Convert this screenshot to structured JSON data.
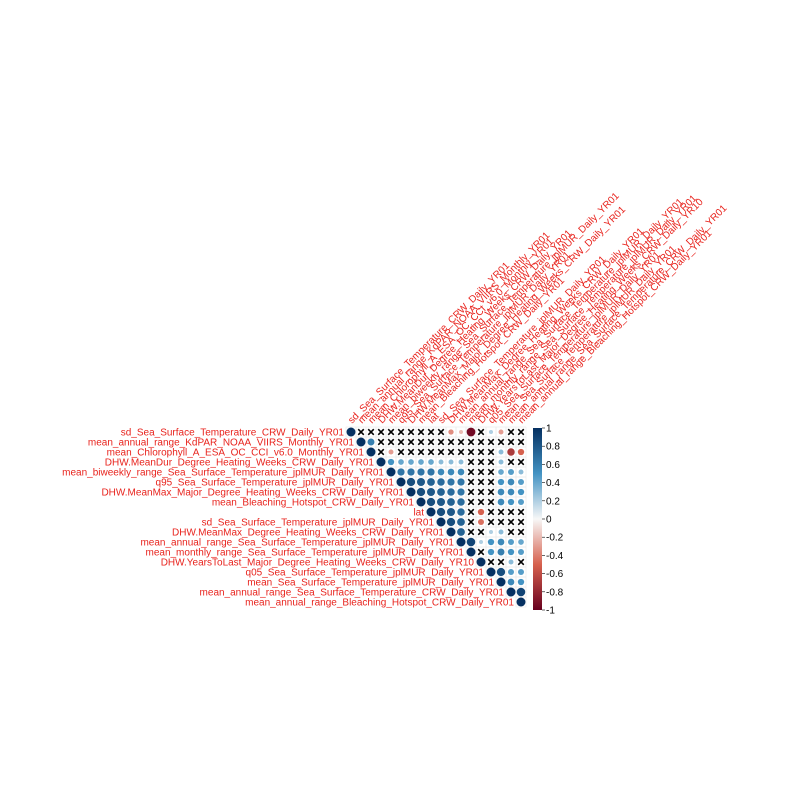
{
  "chart_data": {
    "type": "heatmap",
    "subtype": "correlation-matrix-upper-triangle",
    "variables": [
      "sd_Sea_Surface_Temperature_CRW_Daily_YR01",
      "mean_annual_range_KdPAR_NOAA_VIIRS_Monthly_YR01",
      "mean_Chlorophyll_A_ESA_OC_CCI_v6.0_Monthly_YR01",
      "DHW.MeanDur_Degree_Heating_Weeks_CRW_Daily_YR01",
      "mean_biweekly_range_Sea_Surface_Temperature_jplMUR_Daily_YR01",
      "q95_Sea_Surface_Temperature_jplMUR_Daily_YR01",
      "DHW.MeanMax_Major_Degree_Heating_Weeks_CRW_Daily_YR01",
      "mean_Bleaching_Hotspot_CRW_Daily_YR01",
      "lat",
      "sd_Sea_Surface_Temperature_jplMUR_Daily_YR01",
      "DHW.MeanMax_Degree_Heating_Weeks_CRW_Daily_YR01",
      "mean_annual_range_Sea_Surface_Temperature_jplMUR_Daily_YR01",
      "mean_monthly_range_Sea_Surface_Temperature_jplMUR_Daily_YR01",
      "DHW.YearsToLast_Major_Degree_Heating_Weeks_CRW_Daily_YR10",
      "q05_Sea_Surface_Temperature_jplMUR_Daily_YR01",
      "mean_Sea_Surface_Temperature_jplMUR_Daily_YR01",
      "mean_annual_range_Sea_Surface_Temperature_CRW_Daily_YR01",
      "mean_annual_range_Bleaching_Hotspot_CRW_Daily_YR01"
    ],
    "matrix": [
      [
        1,
        0,
        0,
        0,
        0,
        0,
        0,
        0,
        0,
        0,
        -0.35,
        -0.2,
        -0.95,
        0,
        0.2,
        -0.3,
        0,
        0
      ],
      [
        null,
        1,
        0.6,
        0,
        0,
        0,
        0,
        0,
        0,
        0,
        0,
        0,
        0,
        0,
        0,
        0,
        0,
        0
      ],
      [
        null,
        null,
        1,
        0,
        -0.3,
        0,
        0,
        0,
        0,
        0,
        0,
        0,
        0,
        0,
        0,
        0.3,
        -0.7,
        -0.5
      ],
      [
        null,
        null,
        null,
        1,
        0.5,
        0.4,
        0.4,
        0.4,
        0.4,
        0.3,
        0.3,
        0.3,
        0,
        0,
        0,
        0.3,
        0,
        0
      ],
      [
        null,
        null,
        null,
        null,
        1,
        0.65,
        0.65,
        0.65,
        0.65,
        0.55,
        0.55,
        0.55,
        0,
        0,
        0,
        0.4,
        0.45,
        0.3
      ],
      [
        null,
        null,
        null,
        null,
        null,
        1,
        0.85,
        0.8,
        0.75,
        0.7,
        0.65,
        0.65,
        0,
        0,
        0,
        0.5,
        0.55,
        0.45
      ],
      [
        null,
        null,
        null,
        null,
        null,
        null,
        1,
        0.85,
        0.8,
        0.75,
        0.7,
        0.65,
        0,
        0,
        0,
        0.55,
        0.55,
        0.5
      ],
      [
        null,
        null,
        null,
        null,
        null,
        null,
        null,
        1,
        0.85,
        0.8,
        0.75,
        0.7,
        0,
        0,
        0,
        0.55,
        0.5,
        0.45
      ],
      [
        null,
        null,
        null,
        null,
        null,
        null,
        null,
        null,
        1,
        0.85,
        0.8,
        0.7,
        0,
        -0.5,
        0,
        0,
        0,
        0
      ],
      [
        null,
        null,
        null,
        null,
        null,
        null,
        null,
        null,
        null,
        1,
        0.85,
        0.75,
        0,
        -0.45,
        0,
        0,
        0,
        0
      ],
      [
        null,
        null,
        null,
        null,
        null,
        null,
        null,
        null,
        null,
        null,
        1,
        0.75,
        0,
        0,
        0.2,
        0.3,
        0,
        0
      ],
      [
        null,
        null,
        null,
        null,
        null,
        null,
        null,
        null,
        null,
        null,
        null,
        1,
        0.9,
        0.2,
        0.5,
        0.55,
        0.45,
        0.4
      ],
      [
        null,
        null,
        null,
        null,
        null,
        null,
        null,
        null,
        null,
        null,
        null,
        null,
        1,
        0,
        0.5,
        0.6,
        0.5,
        0.45
      ],
      [
        null,
        null,
        null,
        null,
        null,
        null,
        null,
        null,
        null,
        null,
        null,
        null,
        null,
        1,
        0,
        0,
        0.3,
        0
      ],
      [
        null,
        null,
        null,
        null,
        null,
        null,
        null,
        null,
        null,
        null,
        null,
        null,
        null,
        null,
        1,
        0.85,
        0.45,
        0.45
      ],
      [
        null,
        null,
        null,
        null,
        null,
        null,
        null,
        null,
        null,
        null,
        null,
        null,
        null,
        null,
        null,
        1,
        0.55,
        0.5
      ],
      [
        null,
        null,
        null,
        null,
        null,
        null,
        null,
        null,
        null,
        null,
        null,
        null,
        null,
        null,
        null,
        null,
        1,
        0.9
      ],
      [
        null,
        null,
        null,
        null,
        null,
        null,
        null,
        null,
        null,
        null,
        null,
        null,
        null,
        null,
        null,
        null,
        null,
        1
      ]
    ],
    "insignificant_mark": "x",
    "colorbar": {
      "ticks": [
        "1",
        "0.8",
        "0.6",
        "0.4",
        "0.2",
        "0",
        "-0.2",
        "-0.4",
        "-0.6",
        "-0.8",
        "-1"
      ],
      "range": [
        -1,
        1
      ]
    },
    "colors": {
      "negative_strong": "#67001f",
      "negative_mid": "#d6604d",
      "neutral": "#f7f7f7",
      "positive_mid": "#4393c3",
      "positive_strong": "#053061",
      "label": "#e8231d"
    }
  }
}
